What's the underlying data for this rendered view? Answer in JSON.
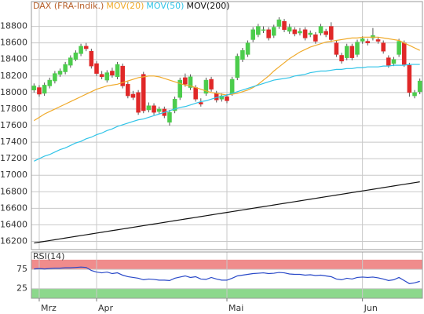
{
  "chart_data": [
    {
      "type": "candlestick",
      "categories": [
        null,
        "Mrz",
        null,
        null,
        null,
        null,
        null,
        null,
        null,
        null,
        null,
        null,
        "Apr",
        null,
        null,
        null,
        null,
        null,
        null,
        null,
        null,
        null,
        null,
        null,
        null,
        null,
        null,
        null,
        null,
        null,
        null,
        null,
        null,
        null,
        null,
        null,
        null,
        "Mai",
        null,
        null,
        null,
        null,
        null,
        null,
        null,
        null,
        null,
        null,
        null,
        null,
        null,
        null,
        null,
        null,
        null,
        null,
        null,
        null,
        null,
        null,
        null,
        null,
        null,
        "Jun",
        null,
        null,
        null,
        null,
        null,
        null,
        null,
        null,
        null,
        null,
        null
      ],
      "series": [
        {
          "name": "DAX (FRA-Indik.)",
          "type": "candlestick",
          "color": "#b8602a",
          "up_color": "#4ccc4c",
          "down_color": "#e02828",
          "open": [
            18030,
            18060,
            17990,
            18080,
            18140,
            18220,
            18250,
            18330,
            18400,
            18470,
            18560,
            18500,
            18350,
            18220,
            18150,
            18260,
            18190,
            18320,
            18100,
            17980,
            18000,
            18220,
            17790,
            17840,
            17770,
            17800,
            17640,
            17780,
            17940,
            18180,
            18060,
            18060,
            17880,
            17990,
            18160,
            17990,
            17920,
            17950,
            17990,
            18180,
            18400,
            18460,
            18640,
            18700,
            18760,
            18760,
            18690,
            18800,
            18860,
            18740,
            18760,
            18720,
            18760,
            18700,
            18700,
            18720,
            18740,
            18800,
            18600,
            18450,
            18420,
            18560,
            18460,
            18620,
            18620,
            18660,
            18640,
            18600,
            18420,
            18350,
            18460,
            18600,
            18330,
            17960,
            18010
          ],
          "high": [
            18110,
            18090,
            18120,
            18180,
            18260,
            18290,
            18370,
            18450,
            18510,
            18590,
            18600,
            18530,
            18380,
            18260,
            18270,
            18300,
            18370,
            18350,
            18130,
            18020,
            18030,
            18250,
            17880,
            17870,
            17830,
            17830,
            17790,
            17950,
            18180,
            18230,
            18220,
            18090,
            17930,
            18180,
            18190,
            18020,
            17990,
            17980,
            18190,
            18470,
            18540,
            18630,
            18790,
            18830,
            18800,
            18790,
            18820,
            18910,
            18890,
            18830,
            18790,
            18780,
            18790,
            18750,
            18730,
            18830,
            18770,
            18850,
            18630,
            18480,
            18590,
            18590,
            18640,
            18680,
            18650,
            18780,
            18670,
            18630,
            18450,
            18430,
            18650,
            18630,
            18360,
            18030,
            18170
          ],
          "low": [
            18000,
            17950,
            17960,
            18050,
            18110,
            18190,
            18220,
            18300,
            18380,
            18440,
            18500,
            18290,
            18200,
            18160,
            18120,
            18180,
            18160,
            18050,
            17930,
            17910,
            17730,
            17750,
            17760,
            17730,
            17740,
            17690,
            17600,
            17750,
            17910,
            18070,
            18030,
            17890,
            17830,
            17960,
            18010,
            17880,
            17890,
            17870,
            17960,
            18150,
            18370,
            18430,
            18610,
            18670,
            18720,
            18630,
            18660,
            18770,
            18730,
            18710,
            18680,
            18690,
            18630,
            18670,
            18590,
            18690,
            18670,
            18610,
            18430,
            18350,
            18390,
            18390,
            18430,
            18590,
            18570,
            18630,
            18590,
            18470,
            18300,
            18320,
            18430,
            18310,
            17950,
            17930,
            17980
          ],
          "close": [
            18080,
            17980,
            18090,
            18150,
            18230,
            18260,
            18340,
            18420,
            18480,
            18560,
            18530,
            18320,
            18230,
            18190,
            18240,
            18210,
            18340,
            18080,
            17960,
            17940,
            17760,
            17780,
            17840,
            17760,
            17800,
            17720,
            17760,
            17920,
            18150,
            18100,
            18190,
            17920,
            17860,
            18150,
            18040,
            17910,
            17960,
            17900,
            18160,
            18440,
            18510,
            18600,
            18760,
            18800,
            18760,
            18660,
            18790,
            18880,
            18760,
            18790,
            18710,
            18740,
            18660,
            18720,
            18620,
            18800,
            18700,
            18640,
            18460,
            18380,
            18560,
            18420,
            18610,
            18650,
            18600,
            18690,
            18620,
            18500,
            18330,
            18400,
            18620,
            18340,
            18000,
            18000,
            18140
          ]
        },
        {
          "name": "MOV(20)",
          "type": "line",
          "color": "#f0aa2a",
          "values": [
            17660,
            17700,
            17740,
            17770,
            17800,
            17830,
            17860,
            17890,
            17920,
            17950,
            17980,
            18010,
            18040,
            18060,
            18080,
            18090,
            18100,
            18120,
            18140,
            18160,
            18180,
            18190,
            18200,
            18200,
            18190,
            18170,
            18150,
            18130,
            18110,
            18090,
            18080,
            18060,
            18040,
            18020,
            18000,
            17990,
            17980,
            17970,
            17980,
            17990,
            18010,
            18030,
            18060,
            18100,
            18150,
            18200,
            18260,
            18310,
            18360,
            18410,
            18450,
            18490,
            18520,
            18550,
            18570,
            18590,
            18610,
            18620,
            18630,
            18640,
            18650,
            18660,
            18660,
            18670,
            18670,
            18670,
            18670,
            18660,
            18650,
            18640,
            18630,
            18600,
            18570,
            18540,
            18510
          ]
        },
        {
          "name": "MOV(50)",
          "type": "line",
          "color": "#30c4e8",
          "values": [
            17170,
            17200,
            17230,
            17250,
            17280,
            17310,
            17330,
            17360,
            17390,
            17410,
            17440,
            17460,
            17490,
            17510,
            17540,
            17560,
            17590,
            17610,
            17630,
            17650,
            17670,
            17680,
            17700,
            17720,
            17740,
            17760,
            17780,
            17800,
            17820,
            17830,
            17850,
            17870,
            17890,
            17900,
            17920,
            17940,
            17950,
            17970,
            17990,
            18010,
            18030,
            18050,
            18070,
            18090,
            18110,
            18130,
            18150,
            18160,
            18170,
            18180,
            18200,
            18210,
            18220,
            18240,
            18250,
            18260,
            18260,
            18270,
            18280,
            18280,
            18290,
            18290,
            18300,
            18300,
            18310,
            18310,
            18310,
            18320,
            18320,
            18330,
            18330,
            18330,
            18340,
            18340,
            18340
          ]
        },
        {
          "name": "MOV(200)",
          "type": "line",
          "color": "#111111",
          "values": [
            16180,
            16190,
            16200,
            16210,
            16220,
            16230,
            16240,
            16250,
            16260,
            16270,
            16280,
            16290,
            16300,
            16310,
            16320,
            16330,
            16340,
            16350,
            16360,
            16370,
            16380,
            16390,
            16400,
            16410,
            16420,
            16430,
            16440,
            16450,
            16460,
            16470,
            16480,
            16490,
            16500,
            16510,
            16520,
            16530,
            16540,
            16550,
            16560,
            16570,
            16580,
            16590,
            16600,
            16610,
            16620,
            16630,
            16640,
            16650,
            16660,
            16670,
            16680,
            16690,
            16700,
            16710,
            16720,
            16730,
            16740,
            16750,
            16760,
            16770,
            16780,
            16790,
            16800,
            16810,
            16820,
            16830,
            16840,
            16850,
            16860,
            16870,
            16880,
            16890,
            16900,
            16910,
            16920
          ]
        }
      ],
      "ylim": [
        16100,
        19100
      ],
      "yticks": [
        16200,
        16400,
        16600,
        16800,
        17000,
        17200,
        17400,
        17600,
        17800,
        18000,
        18200,
        18400,
        18600,
        18800
      ],
      "grid": true
    },
    {
      "type": "line",
      "title": "RSI(14)",
      "series": [
        {
          "type": "line",
          "color": "#2848c8",
          "values": [
            76,
            77,
            76,
            77,
            78,
            78,
            79,
            79,
            80,
            81,
            80,
            72,
            68,
            66,
            68,
            64,
            66,
            60,
            56,
            54,
            52,
            48,
            50,
            49,
            47,
            47,
            46,
            52,
            55,
            58,
            54,
            56,
            50,
            49,
            54,
            50,
            47,
            47,
            52,
            58,
            60,
            62,
            64,
            65,
            66,
            64,
            65,
            67,
            66,
            63,
            62,
            62,
            60,
            61,
            59,
            60,
            58,
            56,
            50,
            48,
            52,
            50,
            54,
            55,
            54,
            55,
            53,
            50,
            46,
            48,
            54,
            46,
            38,
            40,
            44
          ]
        }
      ],
      "bands": [
        {
          "from": 75,
          "to": 100,
          "color": "#f08c8c"
        },
        {
          "from": 0,
          "to": 25,
          "color": "#8cd88c"
        }
      ],
      "ylim": [
        0,
        120
      ],
      "yticks": [
        25,
        75
      ],
      "grid": true
    }
  ]
}
